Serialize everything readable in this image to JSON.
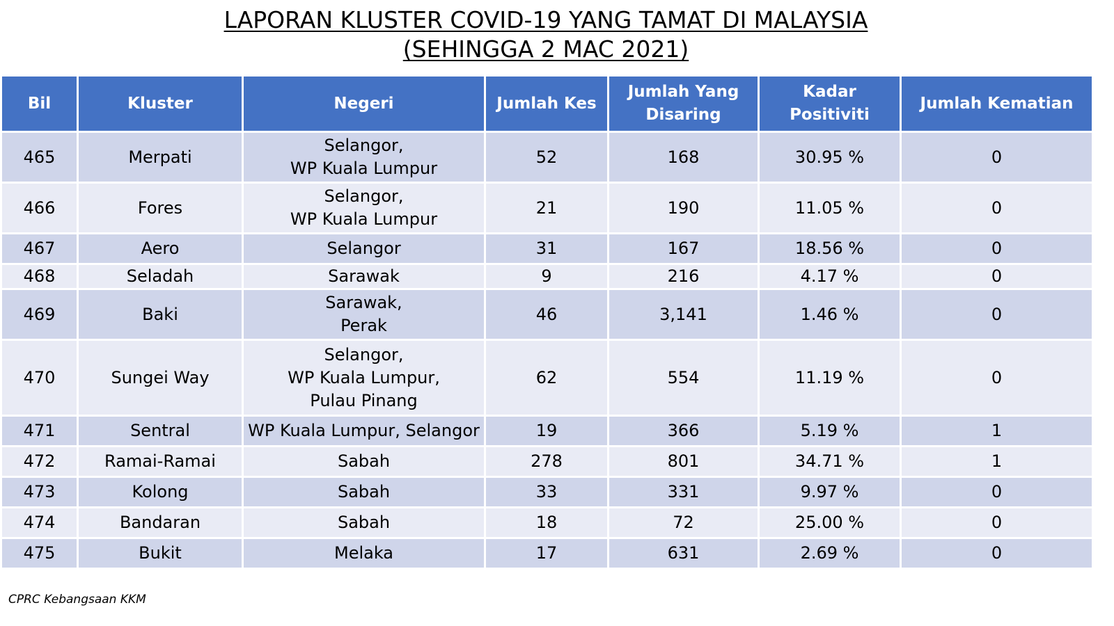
{
  "title_line1": "LAPORAN KLUSTER COVID-19 YANG TAMAT DI MALAYSIA",
  "title_line2": "(SEHINGGA 2 MAC 2021)",
  "columns": {
    "bil": "Bil",
    "kluster": "Kluster",
    "negeri": "Negeri",
    "jumlah_kes": "Jumlah Kes",
    "jumlah_disaring_l1": "Jumlah Yang",
    "jumlah_disaring_l2": "Disaring",
    "kadar_positiviti": "Kadar Positiviti",
    "jumlah_kematian": "Jumlah Kematian"
  },
  "rows": [
    {
      "bil": "465",
      "kluster": "Merpati",
      "negeri": [
        "Selangor,",
        "WP Kuala Lumpur"
      ],
      "kes": "52",
      "disaring": "168",
      "positiviti": "30.95 %",
      "kematian": "0"
    },
    {
      "bil": "466",
      "kluster": "Fores",
      "negeri": [
        "Selangor,",
        "WP Kuala Lumpur"
      ],
      "kes": "21",
      "disaring": "190",
      "positiviti": "11.05 %",
      "kematian": "0"
    },
    {
      "bil": "467",
      "kluster": "Aero",
      "negeri": [
        "Selangor"
      ],
      "kes": "31",
      "disaring": "167",
      "positiviti": "18.56 %",
      "kematian": "0"
    },
    {
      "bil": "468",
      "kluster": "Seladah",
      "negeri": [
        "Sarawak"
      ],
      "kes": "9",
      "disaring": "216",
      "positiviti": "4.17 %",
      "kematian": "0"
    },
    {
      "bil": "469",
      "kluster": "Baki",
      "negeri": [
        "Sarawak,",
        "Perak"
      ],
      "kes": "46",
      "disaring": "3,141",
      "positiviti": "1.46 %",
      "kematian": "0"
    },
    {
      "bil": "470",
      "kluster": "Sungei Way",
      "negeri": [
        "Selangor,",
        "WP Kuala Lumpur,",
        "Pulau Pinang"
      ],
      "kes": "62",
      "disaring": "554",
      "positiviti": "11.19 %",
      "kematian": "0"
    },
    {
      "bil": "471",
      "kluster": "Sentral",
      "negeri": [
        "WP Kuala Lumpur, Selangor"
      ],
      "kes": "19",
      "disaring": "366",
      "positiviti": "5.19 %",
      "kematian": "1"
    },
    {
      "bil": "472",
      "kluster": "Ramai-Ramai",
      "negeri": [
        "Sabah"
      ],
      "kes": "278",
      "disaring": "801",
      "positiviti": "34.71 %",
      "kematian": "1"
    },
    {
      "bil": "473",
      "kluster": "Kolong",
      "negeri": [
        "Sabah"
      ],
      "kes": "33",
      "disaring": "331",
      "positiviti": "9.97 %",
      "kematian": "0"
    },
    {
      "bil": "474",
      "kluster": "Bandaran",
      "negeri": [
        "Sabah"
      ],
      "kes": "18",
      "disaring": "72",
      "positiviti": "25.00 %",
      "kematian": "0"
    },
    {
      "bil": "475",
      "kluster": "Bukit",
      "negeri": [
        "Melaka"
      ],
      "kes": "17",
      "disaring": "631",
      "positiviti": "2.69 %",
      "kematian": "0"
    }
  ],
  "footer": "CPRC Kebangsaan KKM",
  "colors": {
    "header_bg": "#4472c4",
    "row_odd": "#cfd5ea",
    "row_even": "#e9ebf5"
  }
}
